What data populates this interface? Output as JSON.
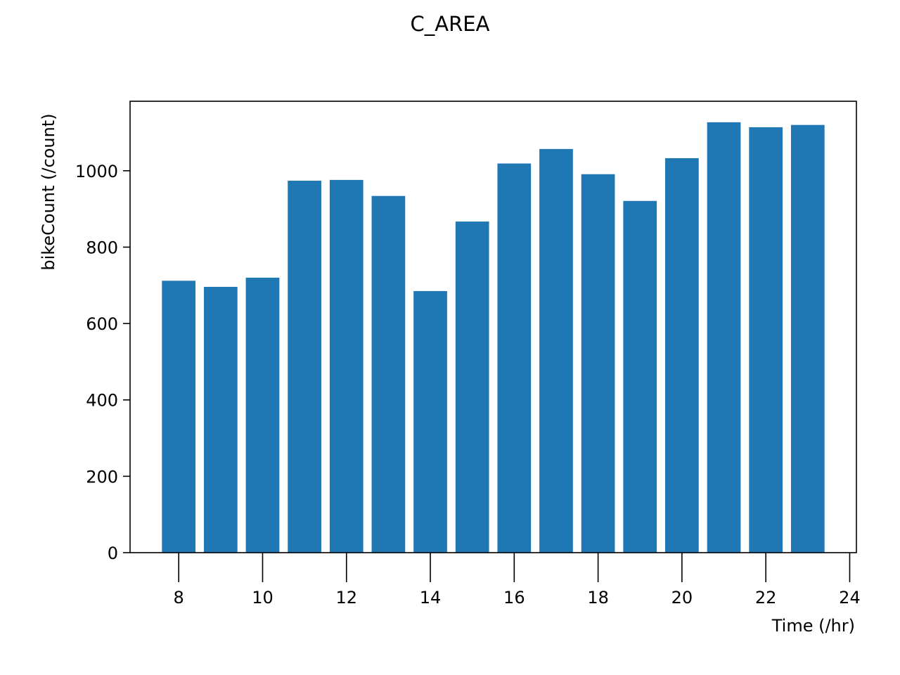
{
  "chart_data": {
    "type": "bar",
    "title": "C_AREA",
    "xlabel": "Time (/hr)",
    "ylabel": "bikeCount (/count)",
    "x": [
      8,
      9,
      10,
      11,
      12,
      13,
      14,
      15,
      16,
      17,
      18,
      19,
      20,
      21,
      22,
      23
    ],
    "values": [
      712,
      696,
      720,
      974,
      976,
      934,
      685,
      867,
      1019,
      1057,
      991,
      921,
      1033,
      1127,
      1114,
      1120
    ],
    "xlim": [
      6.84,
      24.16
    ],
    "ylim": [
      0,
      1182
    ],
    "xticks": [
      8,
      10,
      12,
      14,
      16,
      18,
      20,
      22,
      24
    ],
    "yticks": [
      0,
      200,
      400,
      600,
      800,
      1000
    ],
    "bar_width": 0.8,
    "grid": false,
    "colors": {
      "bar": "#1f77b4",
      "axes": "#000000"
    }
  }
}
